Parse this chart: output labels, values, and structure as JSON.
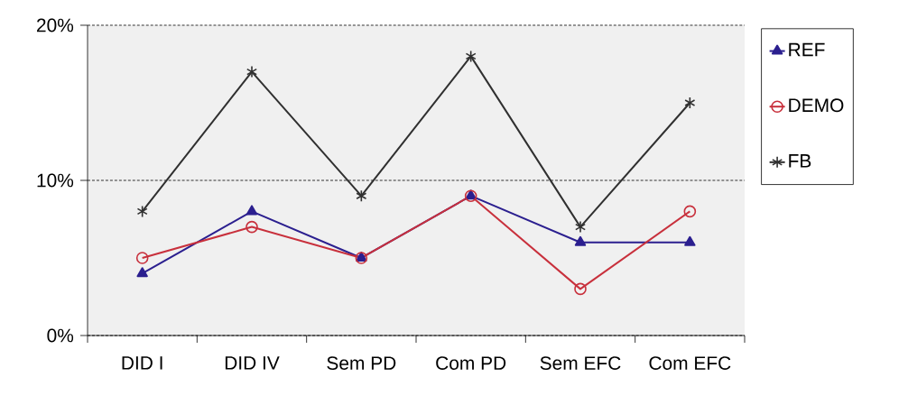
{
  "chart_data": {
    "type": "line",
    "categories": [
      "DID I",
      "DID IV",
      "Sem PD",
      "Com PD",
      "Sem EFC",
      "Com EFC"
    ],
    "ylim": [
      0,
      20
    ],
    "yticks": [
      {
        "value": 0,
        "label": "0%"
      },
      {
        "value": 10,
        "label": "10%"
      },
      {
        "value": 20,
        "label": "20%"
      }
    ],
    "grid": "y",
    "legend": "right",
    "series": [
      {
        "name": "REF",
        "color": "#2b1f8f",
        "marker": "triangle",
        "values": [
          4,
          8,
          5,
          9,
          6,
          6
        ]
      },
      {
        "name": "DEMO",
        "color": "#c8303c",
        "marker": "circle",
        "values": [
          5,
          7,
          5,
          9,
          3,
          8
        ]
      },
      {
        "name": "FB",
        "color": "#303030",
        "marker": "cross",
        "values": [
          8,
          17,
          9,
          18,
          7,
          15
        ]
      }
    ]
  }
}
